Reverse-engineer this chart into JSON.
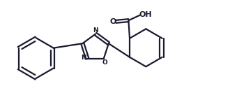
{
  "bg_color": "#ffffff",
  "line_color": "#1a1a2e",
  "line_width": 1.6,
  "figsize": [
    3.3,
    1.53
  ],
  "dpi": 100,
  "xlim": [
    0,
    10
  ],
  "ylim": [
    0,
    4.6
  ]
}
